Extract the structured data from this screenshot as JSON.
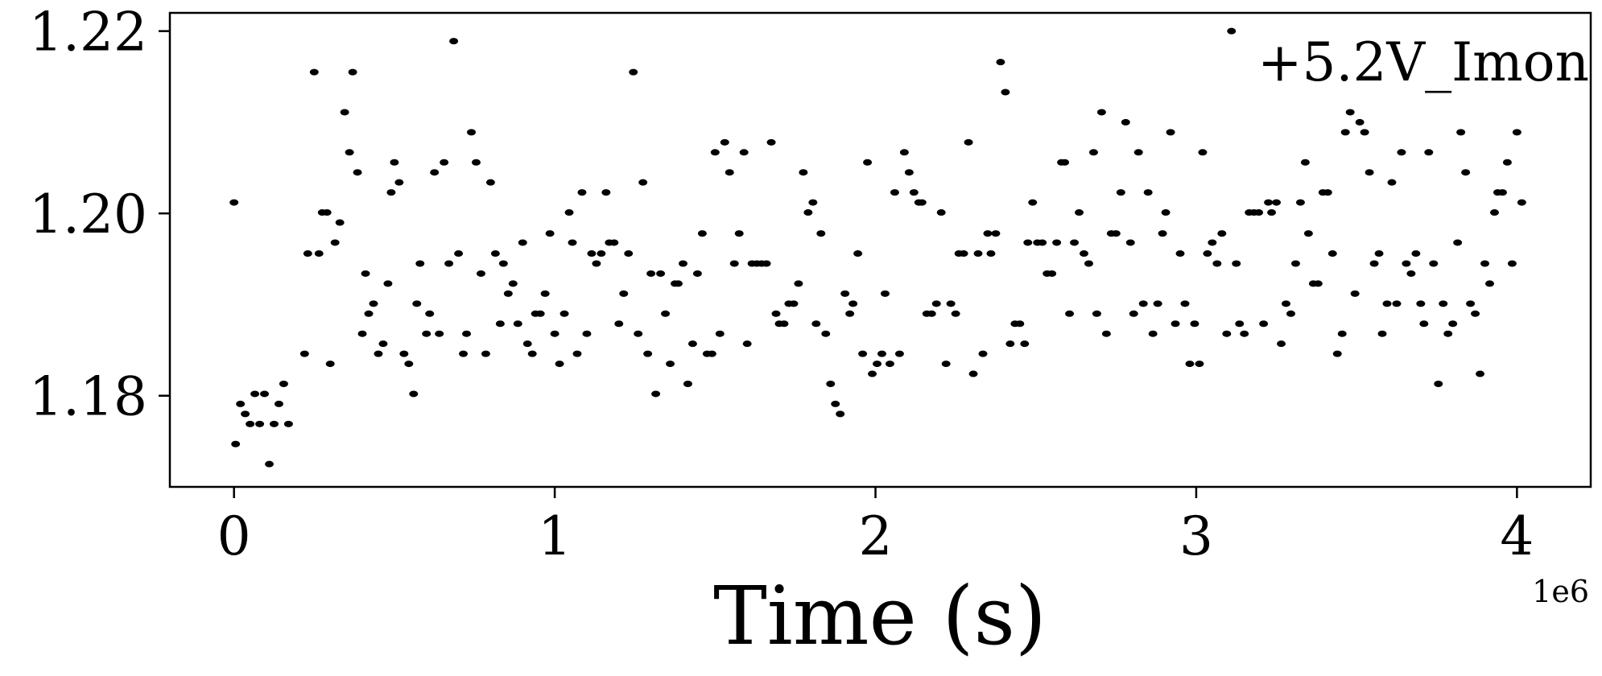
{
  "chart_data": {
    "type": "scatter",
    "title": "",
    "xlabel": "Time (s)",
    "ylabel": "",
    "x_offset_label": "1e6",
    "legend": {
      "label": "+5.2V_Imon",
      "placement": "top-right"
    },
    "xlim": [
      -200000,
      4230000
    ],
    "ylim": [
      1.17,
      1.222
    ],
    "x_ticks": [
      {
        "value": 0,
        "label": "0"
      },
      {
        "value": 1000000,
        "label": "1"
      },
      {
        "value": 2000000,
        "label": "2"
      },
      {
        "value": 3000000,
        "label": "3"
      },
      {
        "value": 4000000,
        "label": "4"
      }
    ],
    "y_ticks": [
      {
        "value": 1.18,
        "label": "1.18"
      },
      {
        "value": 1.2,
        "label": "1.20"
      },
      {
        "value": 1.22,
        "label": "1.22"
      }
    ],
    "grid": false,
    "marker_color": "#000000",
    "series": [
      {
        "name": "+5.2V_Imon",
        "points": [
          [
            0,
            1.2012
          ],
          [
            5000,
            1.1747
          ],
          [
            20000,
            1.1791
          ],
          [
            35000,
            1.178
          ],
          [
            50000,
            1.1769
          ],
          [
            65000,
            1.1802
          ],
          [
            80000,
            1.1769
          ],
          [
            95000,
            1.1802
          ],
          [
            110000,
            1.1725
          ],
          [
            125000,
            1.1769
          ],
          [
            140000,
            1.1791
          ],
          [
            155000,
            1.1813
          ],
          [
            170000,
            1.1769
          ],
          [
            220000,
            1.1846
          ],
          [
            230000,
            1.1956
          ],
          [
            250000,
            1.2155
          ],
          [
            265000,
            1.1956
          ],
          [
            275000,
            1.2001
          ],
          [
            290000,
            1.2001
          ],
          [
            300000,
            1.1835
          ],
          [
            315000,
            1.1968
          ],
          [
            330000,
            1.199
          ],
          [
            345000,
            1.2111
          ],
          [
            360000,
            1.2067
          ],
          [
            370000,
            1.2155
          ],
          [
            385000,
            1.2045
          ],
          [
            400000,
            1.1868
          ],
          [
            410000,
            1.1934
          ],
          [
            420000,
            1.189
          ],
          [
            435000,
            1.1901
          ],
          [
            450000,
            1.1846
          ],
          [
            465000,
            1.1857
          ],
          [
            480000,
            1.1923
          ],
          [
            490000,
            1.2023
          ],
          [
            500000,
            1.2056
          ],
          [
            515000,
            1.2034
          ],
          [
            530000,
            1.1846
          ],
          [
            545000,
            1.1835
          ],
          [
            560000,
            1.1802
          ],
          [
            570000,
            1.1901
          ],
          [
            580000,
            1.1945
          ],
          [
            600000,
            1.1868
          ],
          [
            610000,
            1.189
          ],
          [
            625000,
            1.2045
          ],
          [
            640000,
            1.1868
          ],
          [
            655000,
            1.2056
          ],
          [
            670000,
            1.1945
          ],
          [
            685000,
            1.2189
          ],
          [
            700000,
            1.1956
          ],
          [
            715000,
            1.1846
          ],
          [
            725000,
            1.1868
          ],
          [
            740000,
            1.2089
          ],
          [
            755000,
            1.2056
          ],
          [
            770000,
            1.1934
          ],
          [
            785000,
            1.1846
          ],
          [
            800000,
            1.2034
          ],
          [
            815000,
            1.1956
          ],
          [
            830000,
            1.1879
          ],
          [
            840000,
            1.1945
          ],
          [
            855000,
            1.1912
          ],
          [
            870000,
            1.1923
          ],
          [
            885000,
            1.1879
          ],
          [
            900000,
            1.1968
          ],
          [
            915000,
            1.1857
          ],
          [
            930000,
            1.1846
          ],
          [
            940000,
            1.189
          ],
          [
            955000,
            1.189
          ],
          [
            970000,
            1.1912
          ],
          [
            985000,
            1.1978
          ],
          [
            1000000,
            1.1868
          ],
          [
            1015000,
            1.1835
          ],
          [
            1030000,
            1.189
          ],
          [
            1045000,
            1.2001
          ],
          [
            1055000,
            1.1968
          ],
          [
            1070000,
            1.1846
          ],
          [
            1085000,
            1.2023
          ],
          [
            1100000,
            1.1868
          ],
          [
            1115000,
            1.1956
          ],
          [
            1130000,
            1.1945
          ],
          [
            1145000,
            1.1956
          ],
          [
            1160000,
            1.2023
          ],
          [
            1170000,
            1.1968
          ],
          [
            1185000,
            1.1968
          ],
          [
            1200000,
            1.1879
          ],
          [
            1215000,
            1.1912
          ],
          [
            1230000,
            1.1956
          ],
          [
            1245000,
            1.2155
          ],
          [
            1260000,
            1.1868
          ],
          [
            1275000,
            1.2034
          ],
          [
            1290000,
            1.1846
          ],
          [
            1300000,
            1.1934
          ],
          [
            1315000,
            1.1802
          ],
          [
            1330000,
            1.1934
          ],
          [
            1345000,
            1.189
          ],
          [
            1360000,
            1.1835
          ],
          [
            1375000,
            1.1923
          ],
          [
            1385000,
            1.1923
          ],
          [
            1400000,
            1.1945
          ],
          [
            1415000,
            1.1813
          ],
          [
            1430000,
            1.1857
          ],
          [
            1445000,
            1.1934
          ],
          [
            1460000,
            1.1978
          ],
          [
            1475000,
            1.1846
          ],
          [
            1490000,
            1.1846
          ],
          [
            1500000,
            1.2067
          ],
          [
            1515000,
            1.1868
          ],
          [
            1530000,
            1.2078
          ],
          [
            1545000,
            1.2045
          ],
          [
            1560000,
            1.1945
          ],
          [
            1575000,
            1.1978
          ],
          [
            1590000,
            1.2067
          ],
          [
            1600000,
            1.1857
          ],
          [
            1615000,
            1.1945
          ],
          [
            1630000,
            1.1945
          ],
          [
            1645000,
            1.1945
          ],
          [
            1660000,
            1.1945
          ],
          [
            1675000,
            1.2078
          ],
          [
            1690000,
            1.189
          ],
          [
            1700000,
            1.1879
          ],
          [
            1715000,
            1.1879
          ],
          [
            1730000,
            1.1901
          ],
          [
            1745000,
            1.1901
          ],
          [
            1760000,
            1.1923
          ],
          [
            1775000,
            1.2045
          ],
          [
            1790000,
            1.2001
          ],
          [
            1805000,
            1.2012
          ],
          [
            1815000,
            1.1879
          ],
          [
            1830000,
            1.1978
          ],
          [
            1845000,
            1.1868
          ],
          [
            1860000,
            1.1813
          ],
          [
            1875000,
            1.1791
          ],
          [
            1890000,
            1.178
          ],
          [
            1905000,
            1.1912
          ],
          [
            1920000,
            1.189
          ],
          [
            1930000,
            1.1901
          ],
          [
            1945000,
            1.1956
          ],
          [
            1960000,
            1.1846
          ],
          [
            1975000,
            1.2056
          ],
          [
            1990000,
            1.1824
          ],
          [
            2005000,
            1.1835
          ],
          [
            2020000,
            1.1846
          ],
          [
            2030000,
            1.1912
          ],
          [
            2045000,
            1.1835
          ],
          [
            2060000,
            1.2023
          ],
          [
            2075000,
            1.1846
          ],
          [
            2090000,
            1.2067
          ],
          [
            2105000,
            1.2045
          ],
          [
            2120000,
            1.2023
          ],
          [
            2135000,
            1.2012
          ],
          [
            2145000,
            1.2012
          ],
          [
            2160000,
            1.189
          ],
          [
            2175000,
            1.189
          ],
          [
            2190000,
            1.1901
          ],
          [
            2205000,
            1.2001
          ],
          [
            2220000,
            1.1835
          ],
          [
            2235000,
            1.1901
          ],
          [
            2250000,
            1.189
          ],
          [
            2260000,
            1.1956
          ],
          [
            2275000,
            1.1956
          ],
          [
            2290000,
            1.2078
          ],
          [
            2305000,
            1.1824
          ],
          [
            2320000,
            1.1956
          ],
          [
            2335000,
            1.1846
          ],
          [
            2350000,
            1.1978
          ],
          [
            2360000,
            1.1956
          ],
          [
            2375000,
            1.1978
          ],
          [
            2390000,
            1.2166
          ],
          [
            2405000,
            1.2133
          ],
          [
            2420000,
            1.1857
          ],
          [
            2435000,
            1.1879
          ],
          [
            2450000,
            1.1879
          ],
          [
            2465000,
            1.1857
          ],
          [
            2475000,
            1.1968
          ],
          [
            2490000,
            1.2012
          ],
          [
            2505000,
            1.1968
          ],
          [
            2520000,
            1.1968
          ],
          [
            2535000,
            1.1934
          ],
          [
            2550000,
            1.1934
          ],
          [
            2565000,
            1.1968
          ],
          [
            2580000,
            1.2056
          ],
          [
            2590000,
            1.2056
          ],
          [
            2605000,
            1.189
          ],
          [
            2620000,
            1.1968
          ],
          [
            2635000,
            1.2001
          ],
          [
            2650000,
            1.1956
          ],
          [
            2665000,
            1.1945
          ],
          [
            2680000,
            1.2067
          ],
          [
            2690000,
            1.189
          ],
          [
            2705000,
            1.2111
          ],
          [
            2720000,
            1.1868
          ],
          [
            2735000,
            1.1978
          ],
          [
            2750000,
            1.1978
          ],
          [
            2765000,
            1.2023
          ],
          [
            2780000,
            1.21
          ],
          [
            2795000,
            1.1968
          ],
          [
            2805000,
            1.189
          ],
          [
            2820000,
            1.2067
          ],
          [
            2835000,
            1.1901
          ],
          [
            2850000,
            1.2023
          ],
          [
            2865000,
            1.1868
          ],
          [
            2880000,
            1.1901
          ],
          [
            2895000,
            1.1978
          ],
          [
            2905000,
            1.2001
          ],
          [
            2920000,
            1.2089
          ],
          [
            2935000,
            1.1879
          ],
          [
            2950000,
            1.1956
          ],
          [
            2965000,
            1.1901
          ],
          [
            2980000,
            1.1835
          ],
          [
            2995000,
            1.1879
          ],
          [
            3010000,
            1.1835
          ],
          [
            3020000,
            1.2067
          ],
          [
            3035000,
            1.1956
          ],
          [
            3050000,
            1.1968
          ],
          [
            3065000,
            1.1945
          ],
          [
            3080000,
            1.1978
          ],
          [
            3095000,
            1.1868
          ],
          [
            3110000,
            1.22
          ],
          [
            3125000,
            1.1945
          ],
          [
            3135000,
            1.1879
          ],
          [
            3150000,
            1.1868
          ],
          [
            3165000,
            1.2001
          ],
          [
            3180000,
            1.2001
          ],
          [
            3195000,
            1.2001
          ],
          [
            3210000,
            1.1879
          ],
          [
            3225000,
            1.2012
          ],
          [
            3235000,
            1.2001
          ],
          [
            3250000,
            1.2012
          ],
          [
            3265000,
            1.1857
          ],
          [
            3280000,
            1.1901
          ],
          [
            3295000,
            1.189
          ],
          [
            3310000,
            1.1945
          ],
          [
            3325000,
            1.2012
          ],
          [
            3340000,
            1.2056
          ],
          [
            3350000,
            1.1978
          ],
          [
            3365000,
            1.1923
          ],
          [
            3380000,
            1.1923
          ],
          [
            3395000,
            1.2023
          ],
          [
            3410000,
            1.2023
          ],
          [
            3425000,
            1.1956
          ],
          [
            3440000,
            1.1846
          ],
          [
            3455000,
            1.1868
          ],
          [
            3465000,
            1.2089
          ],
          [
            3480000,
            1.2111
          ],
          [
            3495000,
            1.1912
          ],
          [
            3510000,
            1.21
          ],
          [
            3525000,
            1.2089
          ],
          [
            3540000,
            1.2045
          ],
          [
            3555000,
            1.1945
          ],
          [
            3570000,
            1.1956
          ],
          [
            3580000,
            1.1868
          ],
          [
            3595000,
            1.1901
          ],
          [
            3610000,
            1.2034
          ],
          [
            3625000,
            1.1901
          ],
          [
            3640000,
            1.2067
          ],
          [
            3655000,
            1.1945
          ],
          [
            3670000,
            1.1934
          ],
          [
            3685000,
            1.1956
          ],
          [
            3700000,
            1.1901
          ],
          [
            3710000,
            1.1879
          ],
          [
            3725000,
            1.2067
          ],
          [
            3740000,
            1.1945
          ],
          [
            3755000,
            1.1813
          ],
          [
            3770000,
            1.1901
          ],
          [
            3785000,
            1.1868
          ],
          [
            3800000,
            1.1879
          ],
          [
            3815000,
            1.1968
          ],
          [
            3825000,
            1.2089
          ],
          [
            3840000,
            1.2045
          ],
          [
            3855000,
            1.1901
          ],
          [
            3870000,
            1.189
          ],
          [
            3885000,
            1.1824
          ],
          [
            3900000,
            1.1945
          ],
          [
            3915000,
            1.1923
          ],
          [
            3930000,
            1.2001
          ],
          [
            3940000,
            1.2023
          ],
          [
            3955000,
            1.2023
          ],
          [
            3970000,
            1.2056
          ],
          [
            3985000,
            1.1945
          ],
          [
            4000000,
            1.2089
          ],
          [
            4015000,
            1.2012
          ]
        ]
      }
    ]
  }
}
